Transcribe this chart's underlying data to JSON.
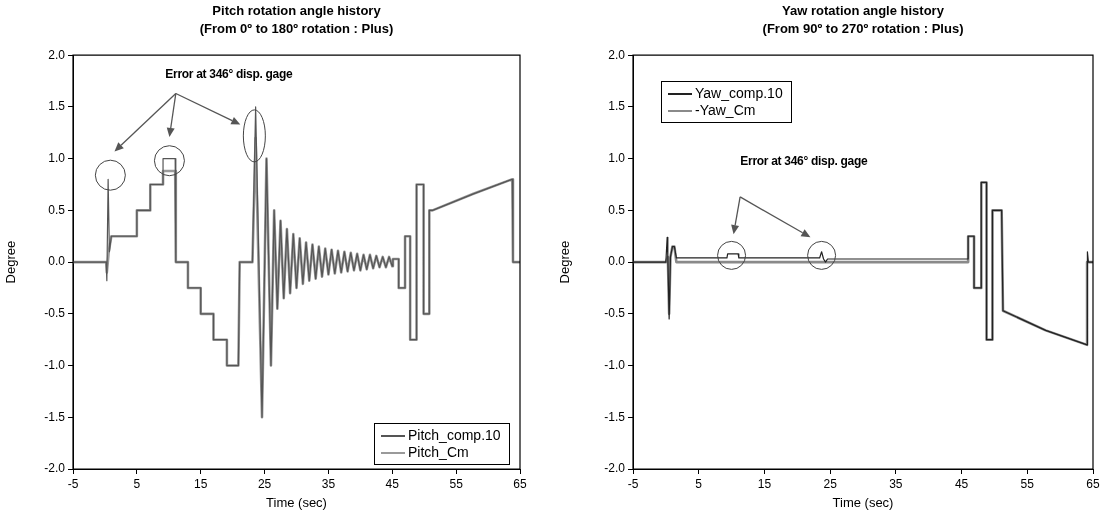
{
  "chart_data": [
    {
      "type": "line",
      "title": "Pitch rotation angle history",
      "subtitle": "(From 0º to 180º rotation : Plus)",
      "xlabel": "Time (sec)",
      "ylabel": "Degree",
      "xlim": [
        -5,
        65
      ],
      "ylim": [
        -2,
        2
      ],
      "xticks": [
        -5,
        5,
        15,
        25,
        35,
        45,
        55,
        65
      ],
      "yticks": [
        {
          "value": 2,
          "label": "2.0"
        },
        {
          "value": 1.5,
          "label": "1.5"
        },
        {
          "value": 1,
          "label": "1.0"
        },
        {
          "value": 0.5,
          "label": "0.5"
        },
        {
          "value": 0,
          "label": "0.0"
        },
        {
          "value": -0.5,
          "label": "-0.5"
        },
        {
          "value": -1,
          "label": "-1.0"
        },
        {
          "value": -1.5,
          "label": "-1.5"
        },
        {
          "value": -2,
          "label": "-2.0"
        }
      ],
      "legend": "bottom right",
      "marker": "none",
      "annotations": [
        "Error at 346° disp. gage"
      ],
      "series": [
        {
          "name": "Pitch_comp.10",
          "color": "#555555",
          "x": [
            -5,
            0.2,
            0.3,
            0.5,
            0.7,
            1.0,
            5.0,
            5.0,
            7.1,
            7.1,
            9.1,
            9.1,
            11.0,
            11.1,
            13.0,
            13.0,
            15.0,
            15.0,
            17.0,
            17.0,
            19.1,
            19.1,
            20.9,
            21.1,
            23.1,
            23.6,
            24.6,
            25.3,
            26.0,
            26.5,
            27.0,
            27.5,
            28.0,
            28.5,
            29.0,
            29.5,
            30.0,
            30.5,
            31.0,
            31.5,
            32.0,
            32.5,
            33.0,
            33.5,
            34.0,
            34.5,
            35.0,
            35.5,
            36.0,
            36.5,
            37.0,
            37.5,
            38.0,
            38.5,
            39.0,
            39.5,
            40.0,
            40.5,
            41.0,
            41.5,
            42.0,
            42.5,
            43.0,
            43.5,
            44.0,
            44.5,
            45.0,
            45.1,
            46.0,
            46.0,
            47.0,
            47.0,
            47.8,
            47.8,
            48.8,
            48.8,
            49.9,
            49.9,
            50.8,
            50.8,
            51.3,
            57.7,
            63.3,
            63.8,
            63.9,
            65
          ],
          "values": [
            0,
            0,
            -0.18,
            0.8,
            0.1,
            0.25,
            0.25,
            0.5,
            0.5,
            0.75,
            0.75,
            1.0,
            1.0,
            0,
            0,
            -0.25,
            -0.25,
            -0.5,
            -0.5,
            -0.75,
            -0.75,
            -1.0,
            -1.0,
            0,
            0,
            1.5,
            -1.5,
            1.0,
            -1.0,
            0.5,
            -0.45,
            0.4,
            -0.35,
            0.32,
            -0.3,
            0.27,
            -0.25,
            0.23,
            -0.21,
            0.19,
            -0.18,
            0.17,
            -0.16,
            0.15,
            -0.14,
            0.13,
            -0.12,
            0.12,
            -0.11,
            0.11,
            -0.1,
            0.1,
            -0.09,
            0.09,
            -0.08,
            0.08,
            -0.08,
            0.07,
            -0.07,
            0.07,
            -0.06,
            0.06,
            -0.05,
            0.05,
            -0.05,
            0.05,
            -0.04,
            0.03,
            0.03,
            -0.25,
            -0.25,
            0.25,
            0.25,
            -0.75,
            -0.75,
            0.75,
            0.75,
            -0.5,
            -0.5,
            0.5,
            0.5,
            0.66,
            0.79,
            0.8,
            0,
            0
          ]
        },
        {
          "name": "Pitch_Cm",
          "color": "#9a9a9a",
          "x": [
            -5,
            0.2,
            0.3,
            0.6,
            1.0,
            5.0,
            5.0,
            7.1,
            7.1,
            9.1,
            9.1,
            11.0,
            11.1,
            13.0,
            13.0,
            15.0,
            15.0,
            17.0,
            17.0,
            19.1,
            19.1,
            20.9,
            21.1,
            23.1,
            23.6,
            24.6,
            25.3,
            26.0,
            26.5,
            27.0,
            27.5,
            28.0,
            28.5,
            29.0,
            29.5,
            30.0,
            30.5,
            31.0,
            31.5,
            32.0,
            32.5,
            33.0,
            33.5,
            34.0,
            34.5,
            35.0,
            35.5,
            36.0,
            36.5,
            37.0,
            37.5,
            38.0,
            38.5,
            39.0,
            39.5,
            40.0,
            40.5,
            41.0,
            41.5,
            42.0,
            42.5,
            43.0,
            43.5,
            44.0,
            44.5,
            45.0,
            45.1,
            46.0,
            46.0,
            47.0,
            47.0,
            47.8,
            47.8,
            48.8,
            48.8,
            49.9,
            49.9,
            50.8,
            50.8,
            51.3,
            57.7,
            63.3,
            63.8,
            63.9,
            65
          ],
          "values": [
            0,
            0,
            -0.1,
            0.1,
            0.25,
            0.25,
            0.5,
            0.5,
            0.75,
            0.75,
            0.88,
            0.88,
            0,
            0,
            -0.25,
            -0.25,
            -0.5,
            -0.5,
            -0.75,
            -0.75,
            -1.0,
            -1.0,
            0,
            0,
            1.2,
            -1.5,
            1.0,
            -1.0,
            0.5,
            -0.45,
            0.4,
            -0.35,
            0.32,
            -0.3,
            0.27,
            -0.25,
            0.23,
            -0.21,
            0.19,
            -0.18,
            0.17,
            -0.16,
            0.15,
            -0.14,
            0.13,
            -0.12,
            0.12,
            -0.11,
            0.11,
            -0.1,
            0.1,
            -0.09,
            0.09,
            -0.08,
            0.08,
            -0.08,
            0.07,
            -0.07,
            0.07,
            -0.06,
            0.06,
            -0.05,
            0.05,
            -0.05,
            0.05,
            -0.04,
            0.03,
            0.03,
            -0.25,
            -0.25,
            0.25,
            0.25,
            -0.75,
            -0.75,
            0.75,
            0.75,
            -0.5,
            -0.5,
            0.5,
            0.5,
            0.66,
            0.79,
            0.8,
            0,
            0
          ]
        }
      ]
    },
    {
      "type": "line",
      "title": "Yaw rotation angle history",
      "subtitle": "(From 90º to 270º rotation : Plus)",
      "xlabel": "Time (sec)",
      "ylabel": "Degree",
      "xlim": [
        -5,
        65
      ],
      "ylim": [
        -2,
        2
      ],
      "xticks": [
        -5,
        5,
        15,
        25,
        35,
        45,
        55,
        65
      ],
      "yticks": [
        {
          "value": 2,
          "label": "2.0"
        },
        {
          "value": 1.5,
          "label": "1.5"
        },
        {
          "value": 1,
          "label": "1.0"
        },
        {
          "value": 0.5,
          "label": "0.5"
        },
        {
          "value": 0,
          "label": "0.0"
        },
        {
          "value": -0.5,
          "label": "-0.5"
        },
        {
          "value": -1,
          "label": "-1.0"
        },
        {
          "value": -1.5,
          "label": "-1.5"
        },
        {
          "value": -2,
          "label": "-2.0"
        }
      ],
      "legend": "top left",
      "marker": "none",
      "annotations": [
        "Error at 346° disp. gage"
      ],
      "series": [
        {
          "name": "Yaw_comp.10",
          "color": "#222222",
          "x": [
            -5,
            0.0,
            0.2,
            0.3,
            0.5,
            0.7,
            1.0,
            1.3,
            1.6,
            9.3,
            9.4,
            11.0,
            11.1,
            23.4,
            23.7,
            24.0,
            24.3,
            24.6,
            46.0,
            46.0,
            46.9,
            46.9,
            48.0,
            48.0,
            48.8,
            48.8,
            49.7,
            49.7,
            51.1,
            51.3,
            57.8,
            64.1,
            64.1,
            64.2,
            64.3,
            65
          ],
          "values": [
            0,
            0,
            0.24,
            0.05,
            -0.55,
            0.05,
            0.15,
            0.15,
            0.04,
            0.04,
            0.08,
            0.08,
            0.04,
            0.04,
            0.1,
            0.03,
            0,
            0.03,
            0.03,
            0.25,
            0.25,
            -0.25,
            -0.25,
            0.77,
            0.77,
            -0.75,
            -0.75,
            0.5,
            0.5,
            -0.47,
            -0.66,
            -0.8,
            0,
            0.1,
            0,
            0
          ]
        },
        {
          "name": "-Yaw_Cm",
          "color": "#8a8a8a",
          "x": [
            -5,
            0.0,
            0.3,
            0.5,
            0.7,
            1.0,
            1.3,
            1.6,
            46.0,
            46.0,
            46.9,
            46.9,
            48.0,
            48.0,
            48.8,
            48.8,
            49.7,
            49.7,
            51.1,
            51.3,
            57.8,
            64.1,
            64.1,
            65
          ],
          "values": [
            0,
            0,
            0.05,
            -0.5,
            0.05,
            0.15,
            0.15,
            0,
            0,
            0.25,
            0.25,
            -0.25,
            -0.25,
            0.77,
            0.77,
            -0.75,
            -0.75,
            0.5,
            0.5,
            -0.47,
            -0.66,
            -0.8,
            0,
            0
          ]
        }
      ]
    }
  ]
}
